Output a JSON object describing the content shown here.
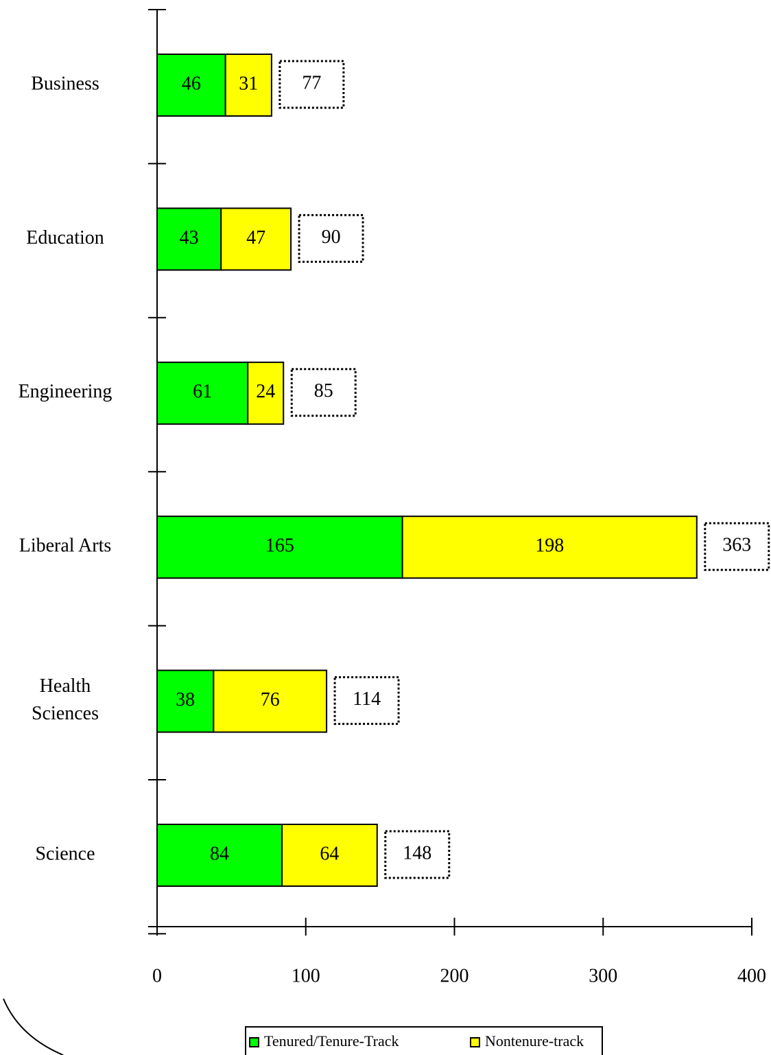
{
  "chart_data": {
    "type": "bar",
    "orientation": "horizontal",
    "stacked": true,
    "categories": [
      [
        "Business"
      ],
      [
        "Education"
      ],
      [
        "Engineering"
      ],
      [
        "Liberal Arts"
      ],
      [
        "Health",
        "Sciences"
      ],
      [
        "Science"
      ]
    ],
    "series": [
      {
        "name": "Tenured/Tenure-Track",
        "color": "#00ff00",
        "values": [
          46,
          43,
          61,
          165,
          38,
          84
        ]
      },
      {
        "name": "Nontenure-track",
        "color": "#ffff00",
        "values": [
          31,
          47,
          24,
          198,
          76,
          64
        ]
      }
    ],
    "totals": [
      77,
      90,
      85,
      363,
      114,
      148
    ],
    "xlim": [
      0,
      400
    ],
    "xticks": [
      0,
      100,
      200,
      300,
      400
    ],
    "grid": false,
    "legend_position": "bottom"
  }
}
